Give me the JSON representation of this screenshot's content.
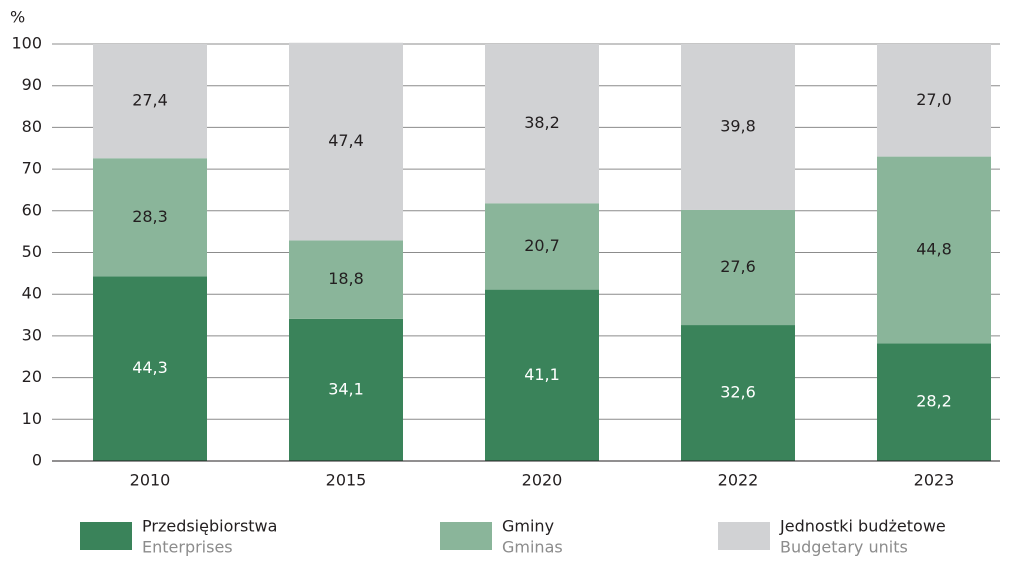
{
  "chart_data": {
    "type": "stacked_bar",
    "y_label": "%",
    "categories": [
      "2010",
      "2015",
      "2020",
      "2022",
      "2023"
    ],
    "series": [
      {
        "name": "Przedsiębiorstwa",
        "name_en": "Enterprises",
        "color": "#3a835a",
        "label_color": "#ffffff",
        "values": [
          44.3,
          34.1,
          41.1,
          32.6,
          28.2
        ],
        "value_labels": [
          "44,3",
          "34,1",
          "41,1",
          "32,6",
          "28,2"
        ]
      },
      {
        "name": "Gminy",
        "name_en": "Gminas",
        "color": "#8ab59a",
        "label_color": "#231f20",
        "values": [
          28.3,
          18.8,
          20.7,
          27.6,
          44.8
        ],
        "value_labels": [
          "28,3",
          "18,8",
          "20,7",
          "27,6",
          "44,8"
        ]
      },
      {
        "name": "Jednostki budżetowe",
        "name_en": "Budgetary units",
        "color": "#d1d2d4",
        "label_color": "#231f20",
        "values": [
          27.4,
          47.4,
          38.2,
          39.8,
          27.0
        ],
        "value_labels": [
          "27,4",
          "47,4",
          "38,2",
          "39,8",
          "27,0"
        ]
      }
    ],
    "ylim": [
      0,
      100
    ],
    "yticks": [
      0,
      10,
      20,
      30,
      40,
      50,
      60,
      70,
      80,
      90,
      100
    ],
    "grid": true
  }
}
